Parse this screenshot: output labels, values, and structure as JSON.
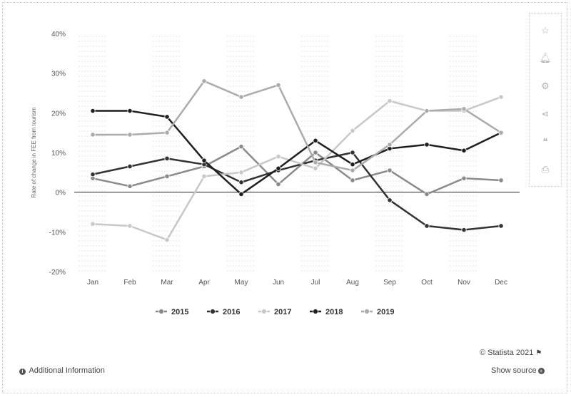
{
  "chart_data": {
    "type": "line",
    "ylabel": "Rate of change in FEE from tourism",
    "categories": [
      "Jan",
      "Feb",
      "Mar",
      "Apr",
      "May",
      "Jun",
      "Jul",
      "Aug",
      "Sep",
      "Oct",
      "Nov",
      "Dec"
    ],
    "y_ticks": [
      "40%",
      "30%",
      "20%",
      "10%",
      "0%",
      "-10%",
      "-20%"
    ],
    "ylim": [
      -20,
      40
    ],
    "grid": "dotted-columns",
    "legend_position": "bottom-center",
    "series": [
      {
        "name": "2015",
        "color": "#8a8a8a",
        "values": [
          3.5,
          1.5,
          4,
          6.5,
          11.5,
          2,
          10,
          3,
          5.5,
          -0.5,
          3.5,
          3
        ]
      },
      {
        "name": "2016",
        "color": "#333333",
        "values": [
          4.5,
          6.5,
          8.5,
          7,
          2.5,
          5.5,
          8,
          10,
          -2,
          -8.5,
          -9.5,
          -8.5
        ]
      },
      {
        "name": "2017",
        "color": "#c8c8c8",
        "values": [
          -8,
          -8.5,
          -12,
          4,
          5,
          9,
          6,
          15.5,
          23,
          20.5,
          20.5,
          24
        ]
      },
      {
        "name": "2018",
        "color": "#1f1f1f",
        "values": [
          20.5,
          20.5,
          19,
          8,
          -0.5,
          6,
          13,
          7,
          11,
          12,
          10.5,
          15
        ]
      },
      {
        "name": "2019",
        "color": "#ababab",
        "values": [
          14.5,
          14.5,
          15,
          28,
          24,
          27,
          7.5,
          5.5,
          12,
          20.5,
          21,
          15
        ]
      }
    ]
  },
  "footer": {
    "credit": "© Statista 2021",
    "additional_info": "Additional Information",
    "show_source": "Show source"
  },
  "tools": [
    "star-icon",
    "bell-icon",
    "gear-icon",
    "share-icon",
    "quote-icon",
    "print-icon"
  ]
}
